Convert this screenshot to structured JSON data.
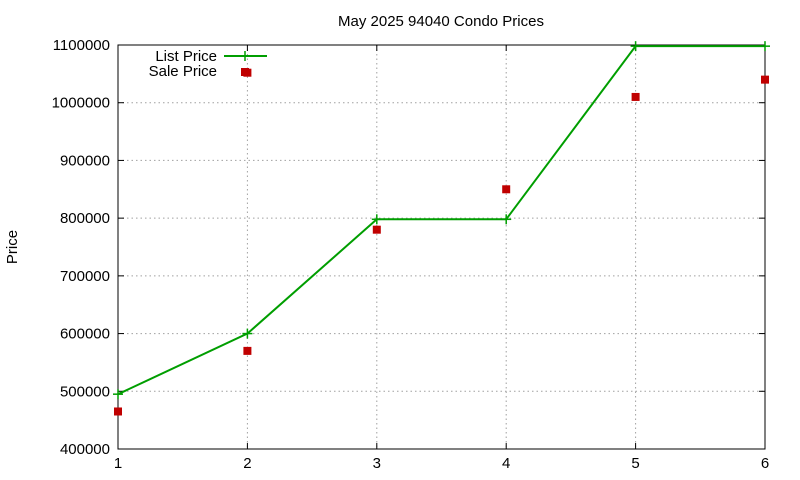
{
  "chart_data": {
    "type": "line",
    "title": "May 2025 94040 Condo Prices",
    "xlabel": "",
    "ylabel": "Price",
    "xlim": [
      1,
      6
    ],
    "ylim": [
      400000,
      1100000
    ],
    "x_ticks": [
      "1",
      "2",
      "3",
      "4",
      "5",
      "6"
    ],
    "y_ticks": [
      "400000",
      "500000",
      "600000",
      "700000",
      "800000",
      "900000",
      "1000000",
      "1100000"
    ],
    "grid": true,
    "legend_position": "top-left",
    "series": [
      {
        "name": "List Price",
        "style": "line-with-plus-markers",
        "color": "#009e00",
        "x": [
          1,
          2,
          3,
          4,
          5,
          6
        ],
        "values": [
          495000,
          600000,
          798000,
          798000,
          1098000,
          1098000
        ]
      },
      {
        "name": "Sale Price",
        "style": "square-points",
        "color": "#c00000",
        "x": [
          1,
          2,
          2,
          3,
          4,
          5,
          6
        ],
        "values": [
          465000,
          570000,
          1052000,
          780000,
          850000,
          1010000,
          1040000
        ]
      }
    ]
  }
}
